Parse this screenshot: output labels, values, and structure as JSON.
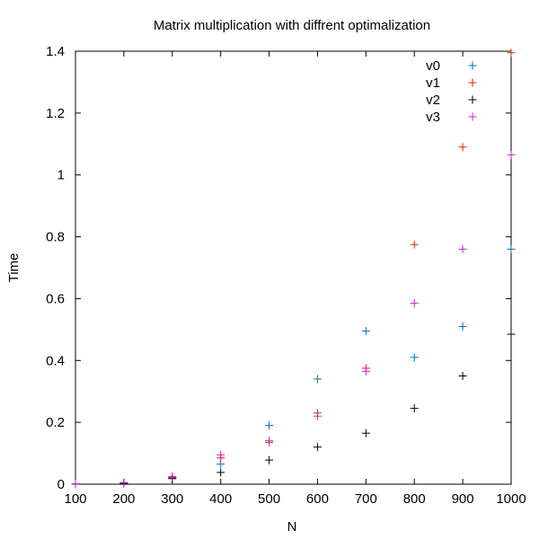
{
  "chart_data": {
    "type": "scatter",
    "title": "Matrix multiplication with diffrent optimalization",
    "xlabel": "N",
    "ylabel": "Time",
    "xlim": [
      100,
      1000
    ],
    "ylim": [
      0,
      1.4
    ],
    "x_ticks": [
      "100",
      "200",
      "300",
      "400",
      "500",
      "600",
      "700",
      "800",
      "900",
      "1000"
    ],
    "y_ticks": [
      "0",
      "0.2",
      "0.4",
      "0.6",
      "0.8",
      "1",
      "1.2",
      "1.4"
    ],
    "grid": false,
    "legend_position": "top-right",
    "marker": "+",
    "series": [
      {
        "name": "v0",
        "color": "#0072b2",
        "x": [
          100,
          200,
          300,
          400,
          500,
          600,
          700,
          800,
          900,
          1000
        ],
        "y": [
          0.0005,
          0.004,
          0.02,
          0.065,
          0.19,
          0.34,
          0.495,
          0.41,
          0.51,
          0.76
        ]
      },
      {
        "name": "v1",
        "color": "#e51e10",
        "x": [
          100,
          200,
          300,
          400,
          500,
          600,
          700,
          800,
          900,
          1000
        ],
        "y": [
          0.0005,
          0.005,
          0.025,
          0.085,
          0.14,
          0.23,
          0.375,
          0.775,
          1.09,
          1.395
        ]
      },
      {
        "name": "v2",
        "color": "#000000",
        "x": [
          100,
          200,
          300,
          400,
          500,
          600,
          700,
          800,
          900,
          1000
        ],
        "y": [
          0.0005,
          0.003,
          0.018,
          0.038,
          0.078,
          0.12,
          0.165,
          0.245,
          0.35,
          0.485
        ]
      },
      {
        "name": "v3",
        "color": "#d020c8",
        "x": [
          100,
          200,
          300,
          400,
          500,
          600,
          700,
          800,
          900,
          1000
        ],
        "y": [
          0.0005,
          0.005,
          0.022,
          0.095,
          0.135,
          0.22,
          0.365,
          0.585,
          0.76,
          1.065
        ]
      }
    ]
  }
}
